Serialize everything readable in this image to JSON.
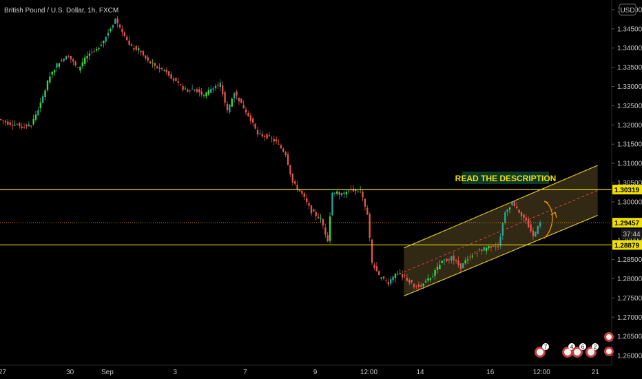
{
  "header": {
    "symbol_title": "British Pound / U.S. Dollar, 1h, FXCM",
    "currency_button": "USD"
  },
  "chart_data": {
    "type": "candlestick",
    "title": "British Pound / U.S. Dollar, 1h, FXCM",
    "ylim": [
      1.2575,
      1.3525
    ],
    "y_ticks": [
      "1.35000",
      "1.34500",
      "1.34000",
      "1.33500",
      "1.33000",
      "1.32500",
      "1.32000",
      "1.31500",
      "1.31000",
      "1.30500",
      "1.30000",
      "1.29500",
      "1.29000",
      "1.28500",
      "1.28000",
      "1.27500",
      "1.27000",
      "1.26500",
      "1.26000"
    ],
    "x_ticks": [
      "27",
      "30",
      "Sep",
      "3",
      "7",
      "9",
      "12:00",
      "14",
      "16",
      "12:00",
      "21"
    ],
    "x_tick_positions": [
      1,
      30,
      46,
      75,
      105,
      135,
      158,
      180,
      210,
      232,
      255
    ],
    "x_range": [
      0,
      262
    ],
    "price_path": [
      [
        0,
        1.3215
      ],
      [
        4,
        1.3205
      ],
      [
        8,
        1.32
      ],
      [
        10,
        1.3195
      ],
      [
        14,
        1.32
      ],
      [
        18,
        1.3255
      ],
      [
        22,
        1.333
      ],
      [
        26,
        1.3365
      ],
      [
        30,
        1.338
      ],
      [
        34,
        1.3345
      ],
      [
        38,
        1.338
      ],
      [
        42,
        1.3395
      ],
      [
        46,
        1.343
      ],
      [
        50,
        1.3475
      ],
      [
        53,
        1.3445
      ],
      [
        56,
        1.3405
      ],
      [
        60,
        1.3395
      ],
      [
        64,
        1.3365
      ],
      [
        68,
        1.335
      ],
      [
        72,
        1.334
      ],
      [
        76,
        1.331
      ],
      [
        80,
        1.329
      ],
      [
        84,
        1.3295
      ],
      [
        88,
        1.3275
      ],
      [
        92,
        1.33
      ],
      [
        95,
        1.3305
      ],
      [
        98,
        1.3235
      ],
      [
        101,
        1.3285
      ],
      [
        104,
        1.3255
      ],
      [
        108,
        1.3215
      ],
      [
        111,
        1.3175
      ],
      [
        115,
        1.317
      ],
      [
        119,
        1.3155
      ],
      [
        123,
        1.3125
      ],
      [
        126,
        1.305
      ],
      [
        130,
        1.302
      ],
      [
        134,
        1.2975
      ],
      [
        138,
        1.2955
      ],
      [
        141,
        1.29
      ],
      [
        143,
        1.3025
      ],
      [
        147,
        1.302
      ],
      [
        151,
        1.303
      ],
      [
        155,
        1.303
      ],
      [
        158,
        1.2965
      ],
      [
        160,
        1.284
      ],
      [
        163,
        1.2805
      ],
      [
        167,
        1.279
      ],
      [
        170,
        1.2815
      ],
      [
        174,
        1.2805
      ],
      [
        178,
        1.278
      ],
      [
        182,
        1.2785
      ],
      [
        186,
        1.281
      ],
      [
        190,
        1.2845
      ],
      [
        194,
        1.2855
      ],
      [
        198,
        1.283
      ],
      [
        202,
        1.286
      ],
      [
        206,
        1.2875
      ],
      [
        210,
        1.288
      ],
      [
        214,
        1.2885
      ],
      [
        217,
        1.297
      ],
      [
        220,
        1.3
      ],
      [
        223,
        1.2975
      ],
      [
        226,
        1.295
      ],
      [
        229,
        1.291
      ],
      [
        232,
        1.2945
      ]
    ],
    "horizontal_levels": [
      {
        "price": 1.30319,
        "label": "1.30319",
        "color": "#f0e000"
      },
      {
        "price": 1.28879,
        "label": "1.28879",
        "color": "#f0e000"
      }
    ],
    "current_price": {
      "price": 1.29457,
      "label": "1.29457",
      "countdown": "37:44",
      "color": "#f0e000"
    },
    "channel": {
      "upper": [
        [
          173,
          1.288
        ],
        [
          256,
          1.3095
        ]
      ],
      "lower": [
        [
          173,
          1.2755
        ],
        [
          256,
          1.2965
        ]
      ],
      "fill": "#5a4a22"
    },
    "annotation": "READ THE DESCRIPTION",
    "colors": {
      "up": "#26a69a",
      "up_bright": "#3ad83a",
      "down": "#e0554a",
      "level": "#f0e000",
      "channel": "#d8c22c"
    }
  }
}
